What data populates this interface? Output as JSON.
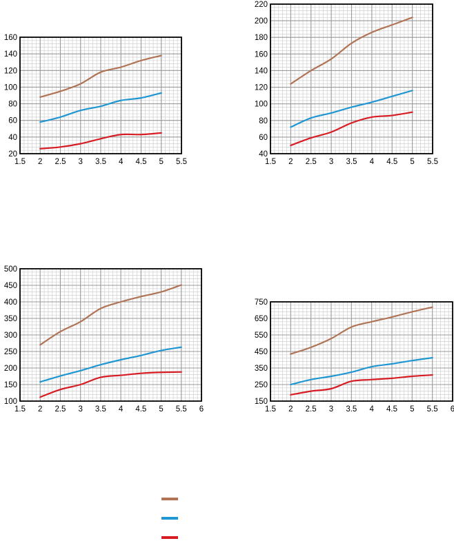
{
  "colors": {
    "brown": "#b07355",
    "blue": "#1e96d2",
    "red": "#d81c24",
    "frame": "#000000",
    "grid_major": "#9a9a9a",
    "grid_minor": "#cfcfcf"
  },
  "legend": [
    {
      "color": "#b07355",
      "label": ""
    },
    {
      "color": "#1e96d2",
      "label": ""
    },
    {
      "color": "#d81c24",
      "label": ""
    }
  ],
  "chart_data": [
    {
      "type": "line",
      "xlim": [
        1.5,
        5.5
      ],
      "ylim": [
        20,
        160
      ],
      "x_ticks": [
        "1.5",
        "2",
        "2.5",
        "3",
        "3.5",
        "4",
        "4.5",
        "5",
        "5.5"
      ],
      "y_ticks": [
        "20",
        "40",
        "60",
        "80",
        "100",
        "120",
        "140",
        "160"
      ],
      "grid": true,
      "series": [
        {
          "color": "brown",
          "x": [
            2,
            2.5,
            3,
            3.5,
            4,
            4.5,
            5
          ],
          "y": [
            88,
            95,
            104,
            118,
            124,
            132,
            138
          ]
        },
        {
          "color": "blue",
          "x": [
            2,
            2.5,
            3,
            3.5,
            4,
            4.5,
            5
          ],
          "y": [
            58,
            64,
            72,
            77,
            84,
            87,
            93
          ]
        },
        {
          "color": "red",
          "x": [
            2,
            2.5,
            3,
            3.5,
            4,
            4.5,
            5
          ],
          "y": [
            26,
            28,
            32,
            38,
            43,
            43,
            45
          ]
        }
      ]
    },
    {
      "type": "line",
      "xlim": [
        1.5,
        5.5
      ],
      "ylim": [
        40,
        220
      ],
      "x_ticks": [
        "1.5",
        "2",
        "2.5",
        "3",
        "3.5",
        "4",
        "4.5",
        "5",
        "5.5"
      ],
      "y_ticks": [
        "40",
        "60",
        "80",
        "100",
        "120",
        "140",
        "160",
        "180",
        "200",
        "220"
      ],
      "grid": true,
      "series": [
        {
          "color": "brown",
          "x": [
            2,
            2.5,
            3,
            3.5,
            4,
            4.5,
            5
          ],
          "y": [
            124,
            140,
            154,
            173,
            186,
            195,
            204
          ]
        },
        {
          "color": "blue",
          "x": [
            2,
            2.5,
            3,
            3.5,
            4,
            4.5,
            5
          ],
          "y": [
            72,
            83,
            89,
            96,
            102,
            109,
            116
          ]
        },
        {
          "color": "red",
          "x": [
            2,
            2.5,
            3,
            3.5,
            4,
            4.5,
            5
          ],
          "y": [
            50,
            59,
            66,
            77,
            84,
            86,
            90
          ]
        }
      ]
    },
    {
      "type": "line",
      "xlim": [
        1.5,
        6
      ],
      "ylim": [
        100,
        500
      ],
      "x_ticks": [
        "1.5",
        "2",
        "2.5",
        "3",
        "3.5",
        "4",
        "4.5",
        "5",
        "5.5",
        "6"
      ],
      "y_ticks": [
        "100",
        "150",
        "200",
        "250",
        "300",
        "350",
        "400",
        "450",
        "500"
      ],
      "grid": true,
      "series": [
        {
          "color": "brown",
          "x": [
            2,
            2.5,
            3,
            3.5,
            4,
            4.5,
            5,
            5.5
          ],
          "y": [
            270,
            310,
            340,
            380,
            400,
            416,
            430,
            451
          ]
        },
        {
          "color": "blue",
          "x": [
            2,
            2.5,
            3,
            3.5,
            4,
            4.5,
            5,
            5.5
          ],
          "y": [
            158,
            176,
            192,
            210,
            225,
            238,
            253,
            263
          ]
        },
        {
          "color": "red",
          "x": [
            2,
            2.5,
            3,
            3.5,
            4,
            4.5,
            5,
            5.5
          ],
          "y": [
            112,
            135,
            150,
            172,
            178,
            184,
            187,
            188
          ]
        }
      ]
    },
    {
      "type": "line",
      "xlim": [
        1.5,
        6
      ],
      "ylim": [
        150,
        750
      ],
      "x_ticks": [
        "1.5",
        "2",
        "2.5",
        "3",
        "3.5",
        "4",
        "4.5",
        "5",
        "5.5",
        "6"
      ],
      "y_ticks": [
        "150",
        "250",
        "350",
        "450",
        "550",
        "650",
        "750"
      ],
      "grid": true,
      "series": [
        {
          "color": "brown",
          "x": [
            2,
            2.5,
            3,
            3.5,
            4,
            4.5,
            5,
            5.5
          ],
          "y": [
            435,
            475,
            528,
            598,
            630,
            658,
            690,
            718
          ]
        },
        {
          "color": "blue",
          "x": [
            2,
            2.5,
            3,
            3.5,
            4,
            4.5,
            5,
            5.5
          ],
          "y": [
            250,
            280,
            300,
            325,
            358,
            375,
            395,
            412
          ]
        },
        {
          "color": "red",
          "x": [
            2,
            2.5,
            3,
            3.5,
            4,
            4.5,
            5,
            5.5
          ],
          "y": [
            188,
            210,
            225,
            270,
            280,
            288,
            300,
            308
          ]
        }
      ]
    }
  ]
}
